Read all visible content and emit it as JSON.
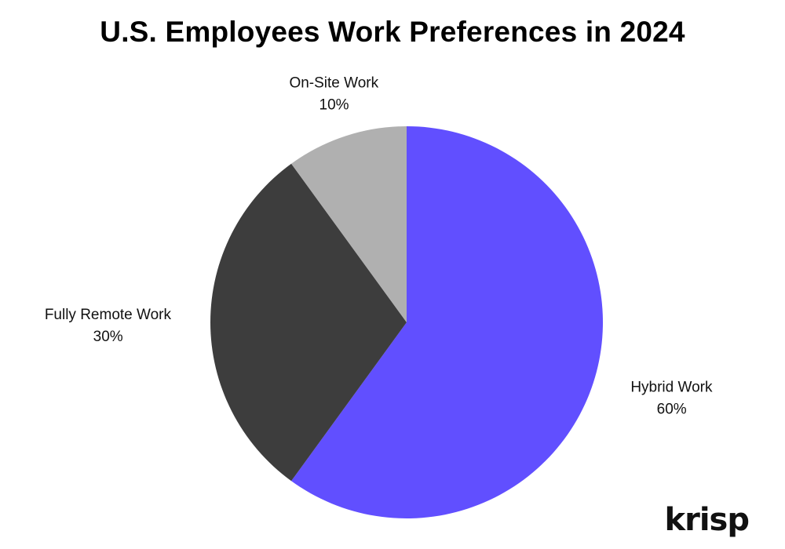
{
  "chart_data": {
    "type": "pie",
    "title": "U.S. Employees Work Preferences in 2024",
    "slices": [
      {
        "label": "Hybrid Work",
        "value": 60,
        "value_label": "60%",
        "color": "#614fff"
      },
      {
        "label": "Fully Remote Work",
        "value": 30,
        "value_label": "30%",
        "color": "#3d3d3d"
      },
      {
        "label": "On-Site Work",
        "value": 10,
        "value_label": "10%",
        "color": "#b0b0b0"
      }
    ],
    "start_angle": "12 o'clock, clockwise",
    "legend": "none (labels beside slices)"
  },
  "brand": {
    "logo_text": "krisp"
  }
}
